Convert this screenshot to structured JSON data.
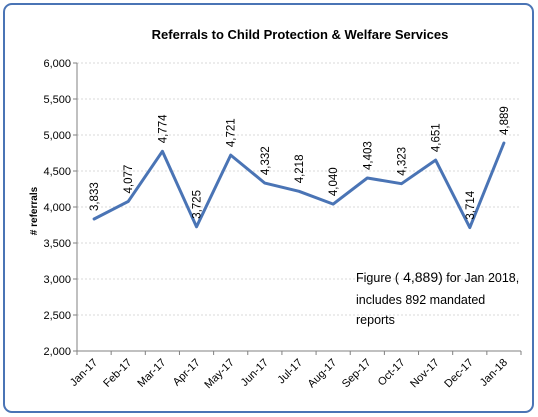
{
  "chart_data": {
    "type": "line",
    "title": "Referrals to Child Protection & Welfare Services",
    "xlabel": "",
    "ylabel": "# referrals",
    "categories": [
      "Jan-17",
      "Feb-17",
      "Mar-17",
      "Apr-17",
      "May-17",
      "Jun-17",
      "Jul-17",
      "Aug-17",
      "Sep-17",
      "Oct-17",
      "Nov-17",
      "Dec-17",
      "Jan-18"
    ],
    "values": [
      3833,
      4077,
      4774,
      3725,
      4721,
      4332,
      4218,
      4040,
      4403,
      4323,
      4651,
      3714,
      4889
    ],
    "data_labels": [
      "3,833",
      "4,077",
      "4,774",
      "3,725",
      "4,721",
      "4,332",
      "4,218",
      "4,040",
      "4,403",
      "4,323",
      "4,651",
      "3,714",
      "4,889"
    ],
    "ylim": [
      2000,
      6000
    ],
    "yticks": [
      2000,
      2500,
      3000,
      3500,
      4000,
      4500,
      5000,
      5500,
      6000
    ],
    "ytick_labels": [
      "2,000",
      "2,500",
      "3,000",
      "3,500",
      "4,000",
      "4,500",
      "5,000",
      "5,500",
      "6,000"
    ],
    "grid": true,
    "line_color": "#4a74b5",
    "annotation": {
      "line1_prefix": "Figure (",
      "line1_value": "4,889)",
      "line1_suffix": " for Jan 2018,",
      "line2": "includes 892 mandated",
      "line3": "reports"
    }
  }
}
